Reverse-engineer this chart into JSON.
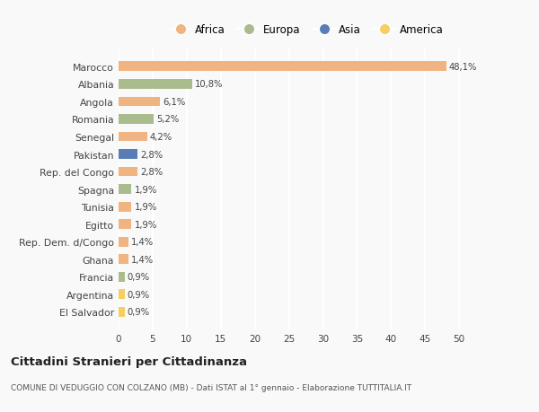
{
  "countries": [
    "Marocco",
    "Albania",
    "Angola",
    "Romania",
    "Senegal",
    "Pakistan",
    "Rep. del Congo",
    "Spagna",
    "Tunisia",
    "Egitto",
    "Rep. Dem. d/Congo",
    "Ghana",
    "Francia",
    "Argentina",
    "El Salvador"
  ],
  "values": [
    48.1,
    10.8,
    6.1,
    5.2,
    4.2,
    2.8,
    2.8,
    1.9,
    1.9,
    1.9,
    1.4,
    1.4,
    0.9,
    0.9,
    0.9
  ],
  "labels": [
    "48,1%",
    "10,8%",
    "6,1%",
    "5,2%",
    "4,2%",
    "2,8%",
    "2,8%",
    "1,9%",
    "1,9%",
    "1,9%",
    "1,4%",
    "1,4%",
    "0,9%",
    "0,9%",
    "0,9%"
  ],
  "continents": [
    "Africa",
    "Europa",
    "Africa",
    "Europa",
    "Africa",
    "Asia",
    "Africa",
    "Europa",
    "Africa",
    "Africa",
    "Africa",
    "Africa",
    "Europa",
    "America",
    "America"
  ],
  "colors": {
    "Africa": "#F0B482",
    "Europa": "#AABB8E",
    "Asia": "#5B7DB5",
    "America": "#F5D060"
  },
  "xlim": [
    0,
    53
  ],
  "xticks": [
    0,
    5,
    10,
    15,
    20,
    25,
    30,
    35,
    40,
    45,
    50
  ],
  "title": "Cittadini Stranieri per Cittadinanza",
  "subtitle": "COMUNE DI VEDUGGIO CON COLZANO (MB) - Dati ISTAT al 1° gennaio - Elaborazione TUTTITALIA.IT",
  "background_color": "#f9f9f9",
  "bar_height": 0.55,
  "grid_color": "#ffffff",
  "text_color": "#444444",
  "legend_order": [
    "Africa",
    "Europa",
    "Asia",
    "America"
  ]
}
